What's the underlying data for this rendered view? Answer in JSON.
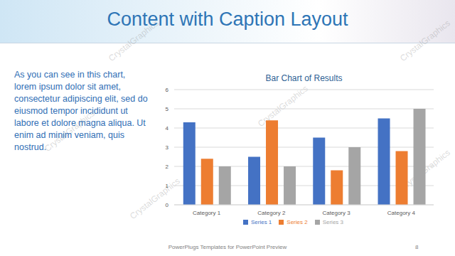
{
  "slide": {
    "title": "Content with Caption Layout",
    "caption": "As you can see in this chart, lorem ipsum dolor sit amet, consectetur adipiscing elit, sed do eiusmod tempor incididunt ut labore et dolore magna aliqua. Ut enim ad minim veniam, quis nostrud.",
    "footer": "PowerPlugs Templates for PowerPoint Preview",
    "page": 8,
    "watermark": "CrystalGraphics"
  },
  "chart_data": {
    "type": "bar",
    "title": "Bar Chart of Results",
    "categories": [
      "Category 1",
      "Category 2",
      "Category 3",
      "Category 4"
    ],
    "series": [
      {
        "name": "Series 1",
        "color": "#4472c4",
        "values": [
          4.3,
          2.5,
          3.5,
          4.5
        ]
      },
      {
        "name": "Series 2",
        "color": "#ed7d31",
        "values": [
          2.4,
          4.4,
          1.8,
          2.8
        ]
      },
      {
        "name": "Series 3",
        "color": "#a5a5a5",
        "values": [
          2,
          2,
          3,
          5
        ]
      }
    ],
    "ylim": [
      0,
      6
    ],
    "yticks": [
      0,
      1,
      2,
      3,
      4,
      5,
      6
    ],
    "grid": true,
    "legend": "bottom"
  }
}
